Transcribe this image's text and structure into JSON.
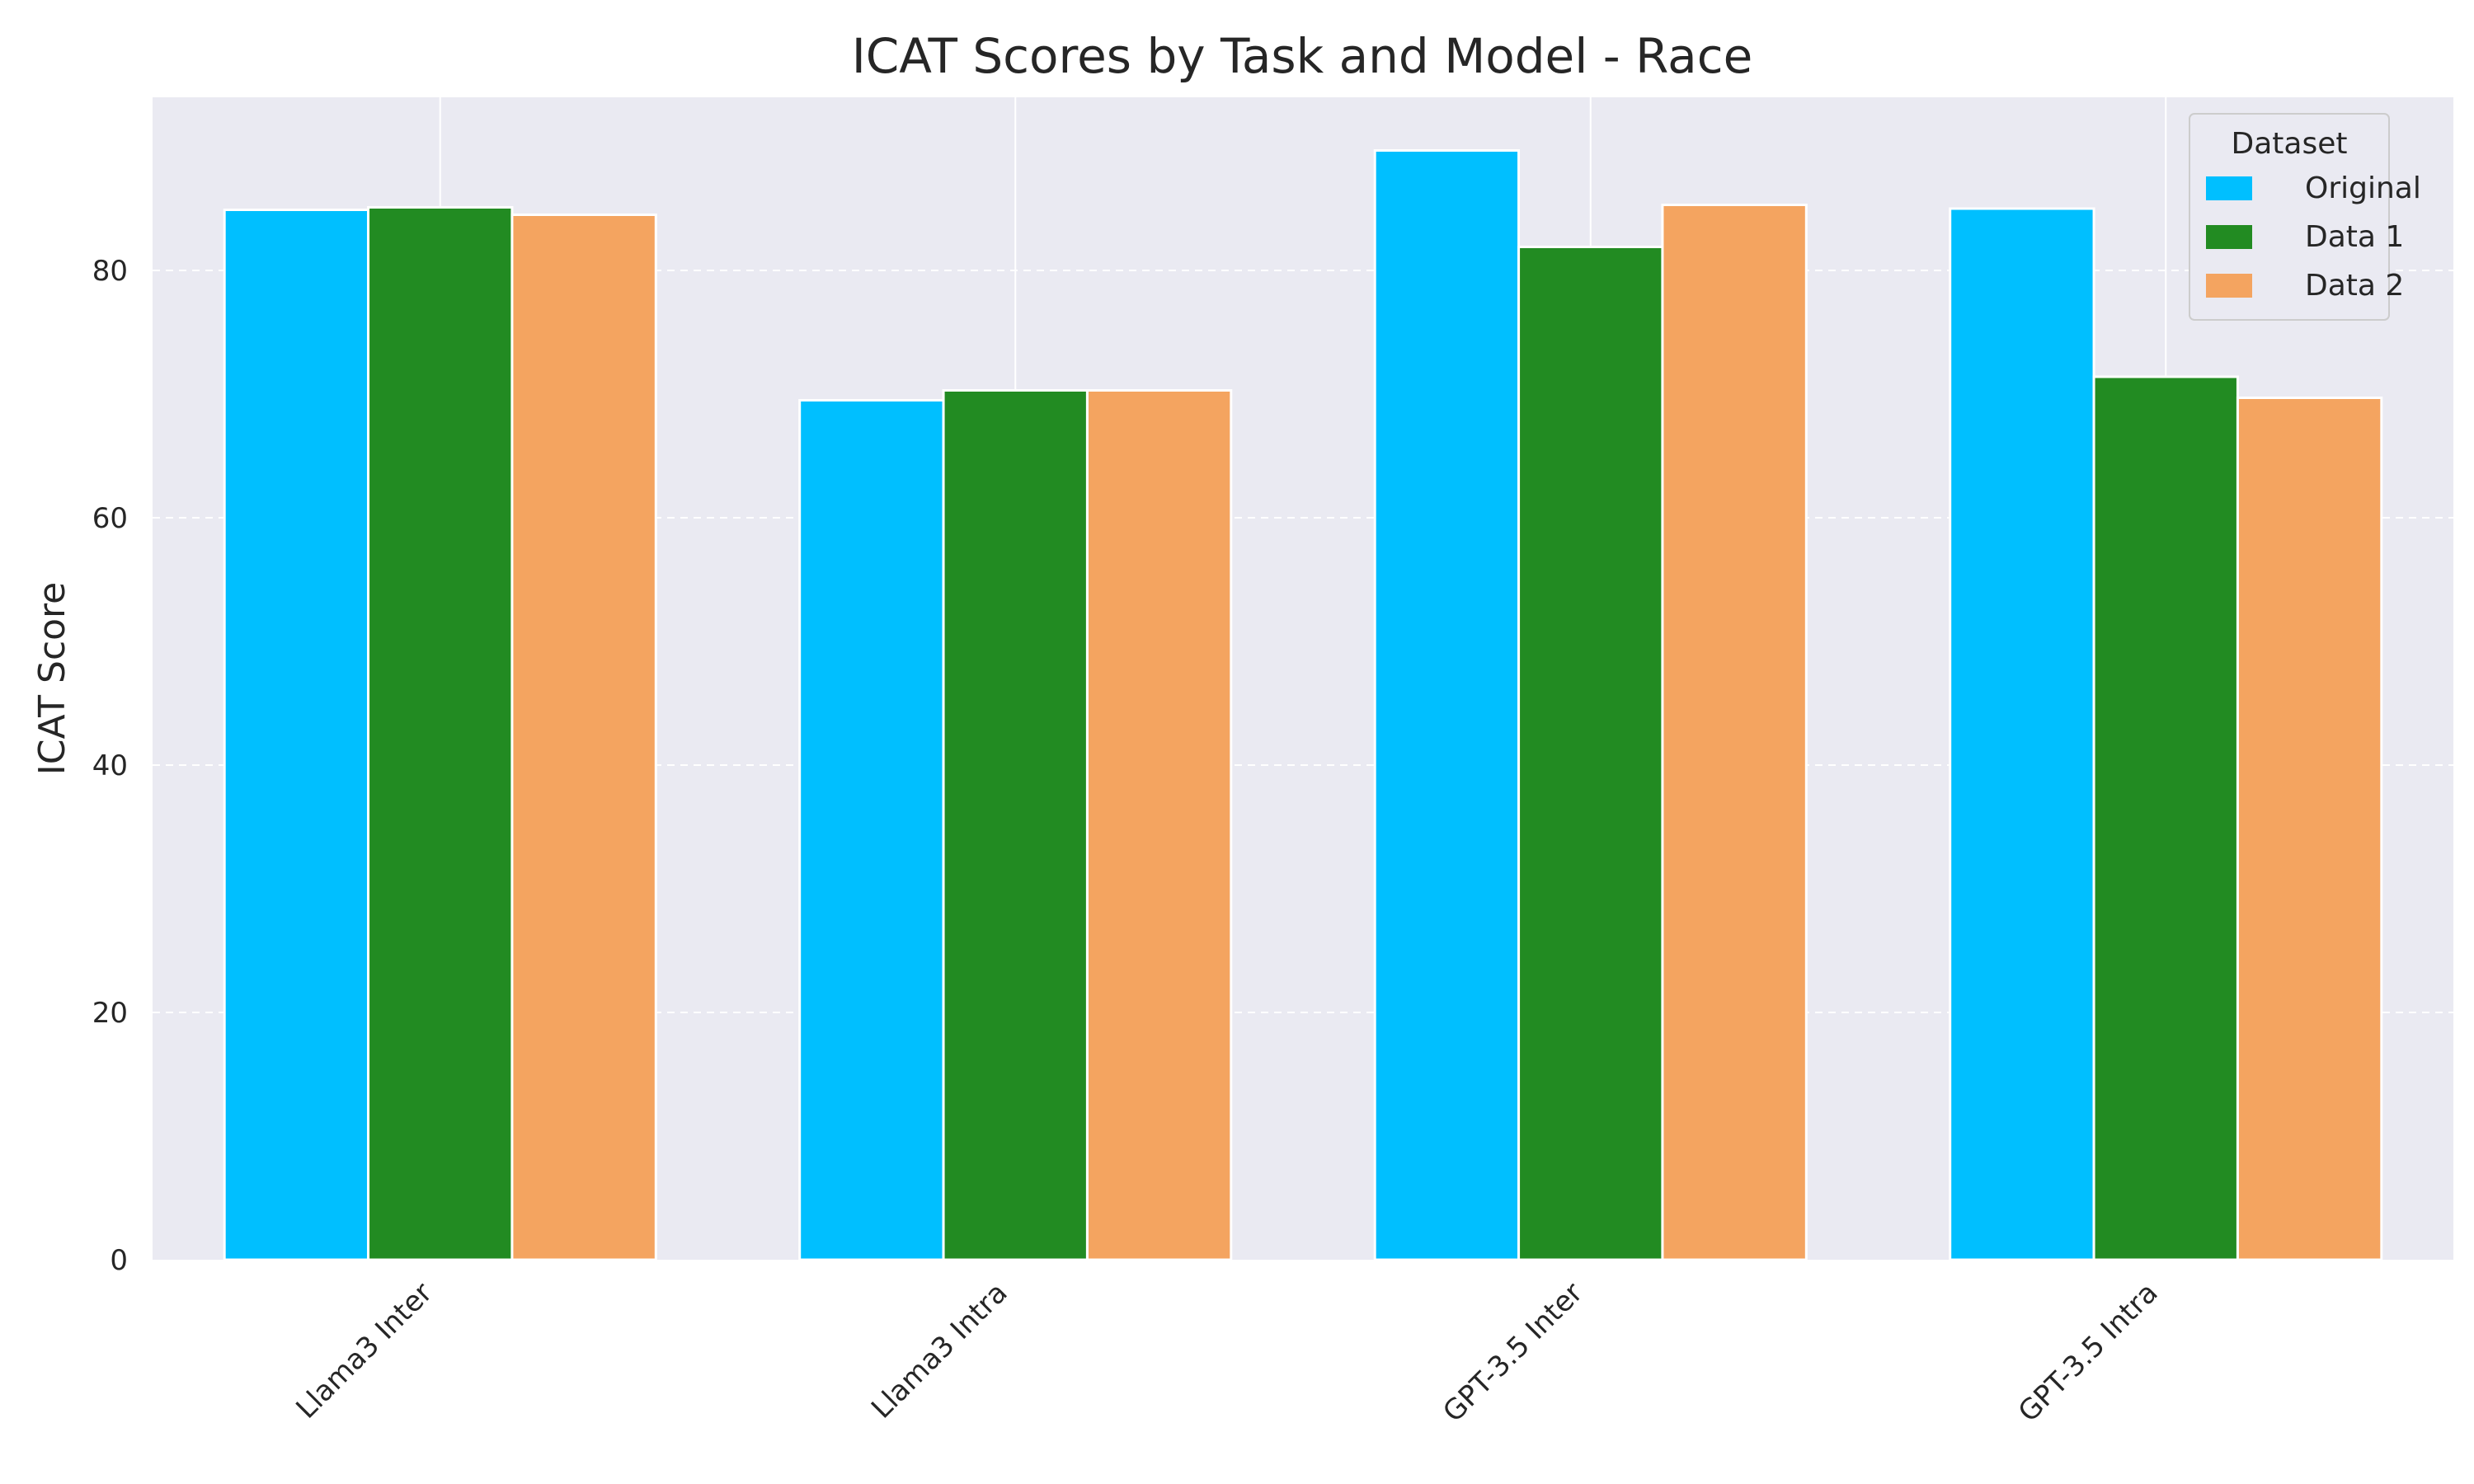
{
  "chart_data": {
    "type": "bar",
    "title": "ICAT Scores by Task and Model - Race",
    "xlabel": "",
    "ylabel": "ICAT Score",
    "categories": [
      "Llama3 Inter",
      "Llama3 Intra",
      "GPT-3.5 Inter",
      "GPT-3.5 Intra"
    ],
    "series": [
      {
        "name": "Original",
        "color": "#00bfff",
        "values": [
          84.9,
          69.5,
          89.7,
          85.0
        ]
      },
      {
        "name": "Data 1",
        "color": "#228b22",
        "values": [
          85.1,
          70.3,
          81.9,
          71.4
        ]
      },
      {
        "name": "Data 2",
        "color": "#f4a460",
        "values": [
          84.5,
          70.3,
          85.3,
          69.7
        ]
      }
    ],
    "ylim": [
      0,
      94
    ],
    "yticks": [
      "0",
      "20",
      "40",
      "60",
      "80"
    ],
    "grid": true,
    "legend": {
      "title": "Dataset",
      "placement": "top-right"
    }
  }
}
